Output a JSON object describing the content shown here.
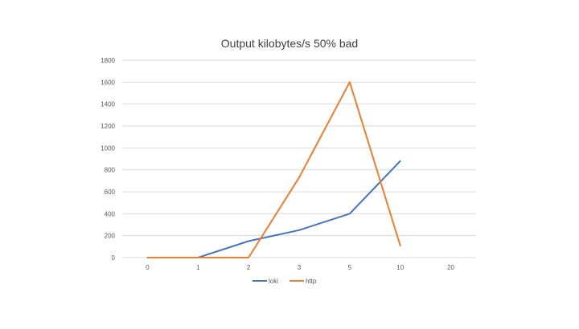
{
  "chart_data": {
    "type": "line",
    "title": "Output kilobytes/s 50% bad",
    "xlabel": "",
    "ylabel": "",
    "categories": [
      "0",
      "1",
      "2",
      "3",
      "5",
      "10",
      "20"
    ],
    "ylim": [
      0,
      1800
    ],
    "yticks": [
      0,
      200,
      400,
      600,
      800,
      1000,
      1200,
      1400,
      1600,
      1800
    ],
    "grid": true,
    "legend": "bottom",
    "series": [
      {
        "name": "loki",
        "color": "#4472C4",
        "values": [
          null,
          0,
          150,
          250,
          400,
          880,
          null
        ]
      },
      {
        "name": "http",
        "color": "#ED7D31",
        "values": [
          0,
          0,
          0,
          730,
          1600,
          110,
          null
        ]
      }
    ]
  }
}
